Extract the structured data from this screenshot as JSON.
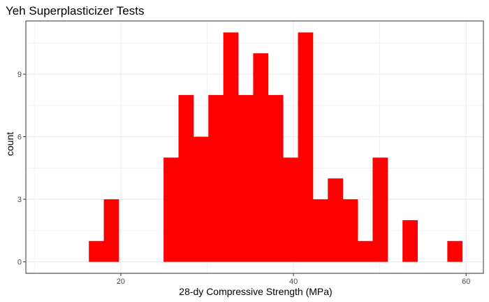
{
  "chart_data": {
    "type": "bar",
    "subtype": "histogram",
    "title": "Yeh Superplasticizer Tests",
    "xlabel": "28-dy Compressive Strength (MPa)",
    "ylabel": "count",
    "bar_color": "#ff0000",
    "panel_border_color": "#333333",
    "grid_color": "#ebebeb",
    "xlim": [
      9,
      62
    ],
    "ylim": [
      -0.55,
      11.55
    ],
    "x_ticks": [
      20,
      40,
      60
    ],
    "y_ticks": [
      0,
      3,
      6,
      9
    ],
    "x_tick_labels": [
      "20",
      "40",
      "60"
    ],
    "y_tick_labels": [
      "0",
      "3",
      "6",
      "9"
    ],
    "bin_width": 1.73,
    "bins": [
      {
        "start": 16.3,
        "count": 1
      },
      {
        "start": 18.03,
        "count": 3
      },
      {
        "start": 19.76,
        "count": 0
      },
      {
        "start": 21.49,
        "count": 0
      },
      {
        "start": 23.22,
        "count": 0
      },
      {
        "start": 24.95,
        "count": 5
      },
      {
        "start": 26.68,
        "count": 8
      },
      {
        "start": 28.41,
        "count": 6
      },
      {
        "start": 30.14,
        "count": 8
      },
      {
        "start": 31.87,
        "count": 11
      },
      {
        "start": 33.6,
        "count": 8
      },
      {
        "start": 35.33,
        "count": 10
      },
      {
        "start": 37.06,
        "count": 8
      },
      {
        "start": 38.79,
        "count": 5
      },
      {
        "start": 40.52,
        "count": 11
      },
      {
        "start": 42.25,
        "count": 3
      },
      {
        "start": 43.98,
        "count": 4
      },
      {
        "start": 45.71,
        "count": 3
      },
      {
        "start": 47.44,
        "count": 1
      },
      {
        "start": 49.17,
        "count": 5
      },
      {
        "start": 50.9,
        "count": 0
      },
      {
        "start": 52.63,
        "count": 2
      },
      {
        "start": 54.36,
        "count": 0
      },
      {
        "start": 56.09,
        "count": 0
      },
      {
        "start": 57.82,
        "count": 1
      }
    ]
  }
}
